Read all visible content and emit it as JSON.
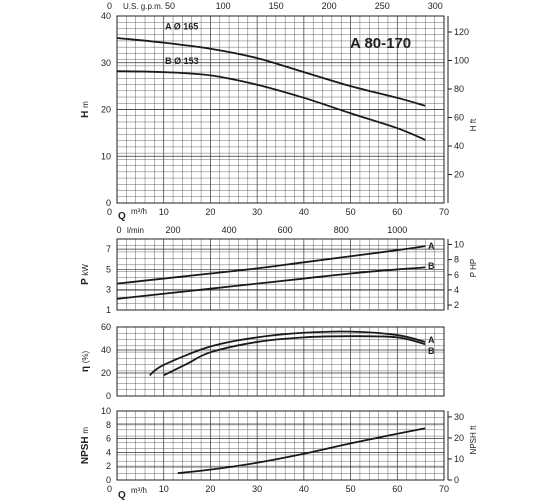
{
  "chart_data": {
    "type": "line",
    "title": "A 80-170",
    "flow_axes": {
      "bottom_label": "Q",
      "bottom_unit": "m³/h",
      "bottom_ticks": [
        0,
        10,
        20,
        30,
        40,
        50,
        60,
        70
      ],
      "range": [
        0,
        70
      ],
      "gpm_label": "U.S. g.p.m.",
      "gpm_ticks": [
        0,
        50,
        100,
        150,
        200,
        250,
        300
      ],
      "lmin_label": "l/min",
      "lmin_ticks": [
        0,
        200,
        400,
        600,
        800,
        1000
      ]
    },
    "panels": [
      {
        "id": "head",
        "ylabel": "H",
        "yunit": "m",
        "ylim": [
          0,
          40
        ],
        "yticks": [
          0,
          10,
          20,
          30,
          40
        ],
        "right_label": "H ft",
        "right_ticks": [
          20,
          40,
          60,
          80,
          100,
          120
        ],
        "series": [
          {
            "name": "A",
            "label": "A Ø 165",
            "x": [
              0,
              10,
              20,
              30,
              40,
              50,
              60,
              66
            ],
            "y": [
              35.3,
              34.3,
              33.0,
              31.0,
              28.0,
              25.0,
              22.5,
              20.8
            ]
          },
          {
            "name": "B",
            "label": "B Ø 153",
            "x": [
              0,
              10,
              20,
              30,
              40,
              50,
              60,
              66
            ],
            "y": [
              28.2,
              28.0,
              27.3,
              25.3,
              22.5,
              19.2,
              16.0,
              13.5
            ]
          }
        ]
      },
      {
        "id": "power",
        "ylabel": "P",
        "yunit": "kW",
        "ylim": [
          1,
          8
        ],
        "yticks": [
          1,
          3,
          5,
          7
        ],
        "right_label": "P HP",
        "right_ticks": [
          2,
          4,
          6,
          8,
          10
        ],
        "series": [
          {
            "name": "A",
            "label": "A",
            "x": [
              0,
              10,
              20,
              30,
              40,
              50,
              60,
              66
            ],
            "y": [
              3.6,
              4.1,
              4.6,
              5.1,
              5.7,
              6.3,
              6.9,
              7.3
            ]
          },
          {
            "name": "B",
            "label": "B",
            "x": [
              0,
              10,
              20,
              30,
              40,
              50,
              60,
              66
            ],
            "y": [
              2.1,
              2.6,
              3.1,
              3.6,
              4.1,
              4.6,
              5.0,
              5.2
            ]
          }
        ]
      },
      {
        "id": "efficiency",
        "ylabel": "η",
        "yunit": "(%)",
        "ylim": [
          0,
          60
        ],
        "yticks": [
          0,
          20,
          40,
          60
        ],
        "series": [
          {
            "name": "A",
            "label": "A",
            "x": [
              7,
              10,
              20,
              30,
              40,
              50,
              60,
              66
            ],
            "y": [
              18,
              27,
              43,
              51,
              55,
              56,
              53,
              47
            ]
          },
          {
            "name": "B",
            "label": "B",
            "x": [
              10,
              15,
              20,
              30,
              40,
              50,
              60,
              66
            ],
            "y": [
              18,
              28,
              38,
              47,
              51,
              52,
              51,
              45
            ]
          }
        ]
      },
      {
        "id": "npsh",
        "ylabel": "NPSH",
        "yunit": "m",
        "ylim": [
          0,
          10
        ],
        "yticks": [
          0,
          2,
          4,
          6,
          8,
          10
        ],
        "right_label": "NPSH ft",
        "right_ticks": [
          0,
          10,
          20,
          30
        ],
        "series": [
          {
            "name": "",
            "x": [
              13,
              20,
              30,
              40,
              50,
              60,
              66
            ],
            "y": [
              1.0,
              1.5,
              2.5,
              3.8,
              5.3,
              6.7,
              7.5
            ]
          }
        ]
      }
    ]
  }
}
